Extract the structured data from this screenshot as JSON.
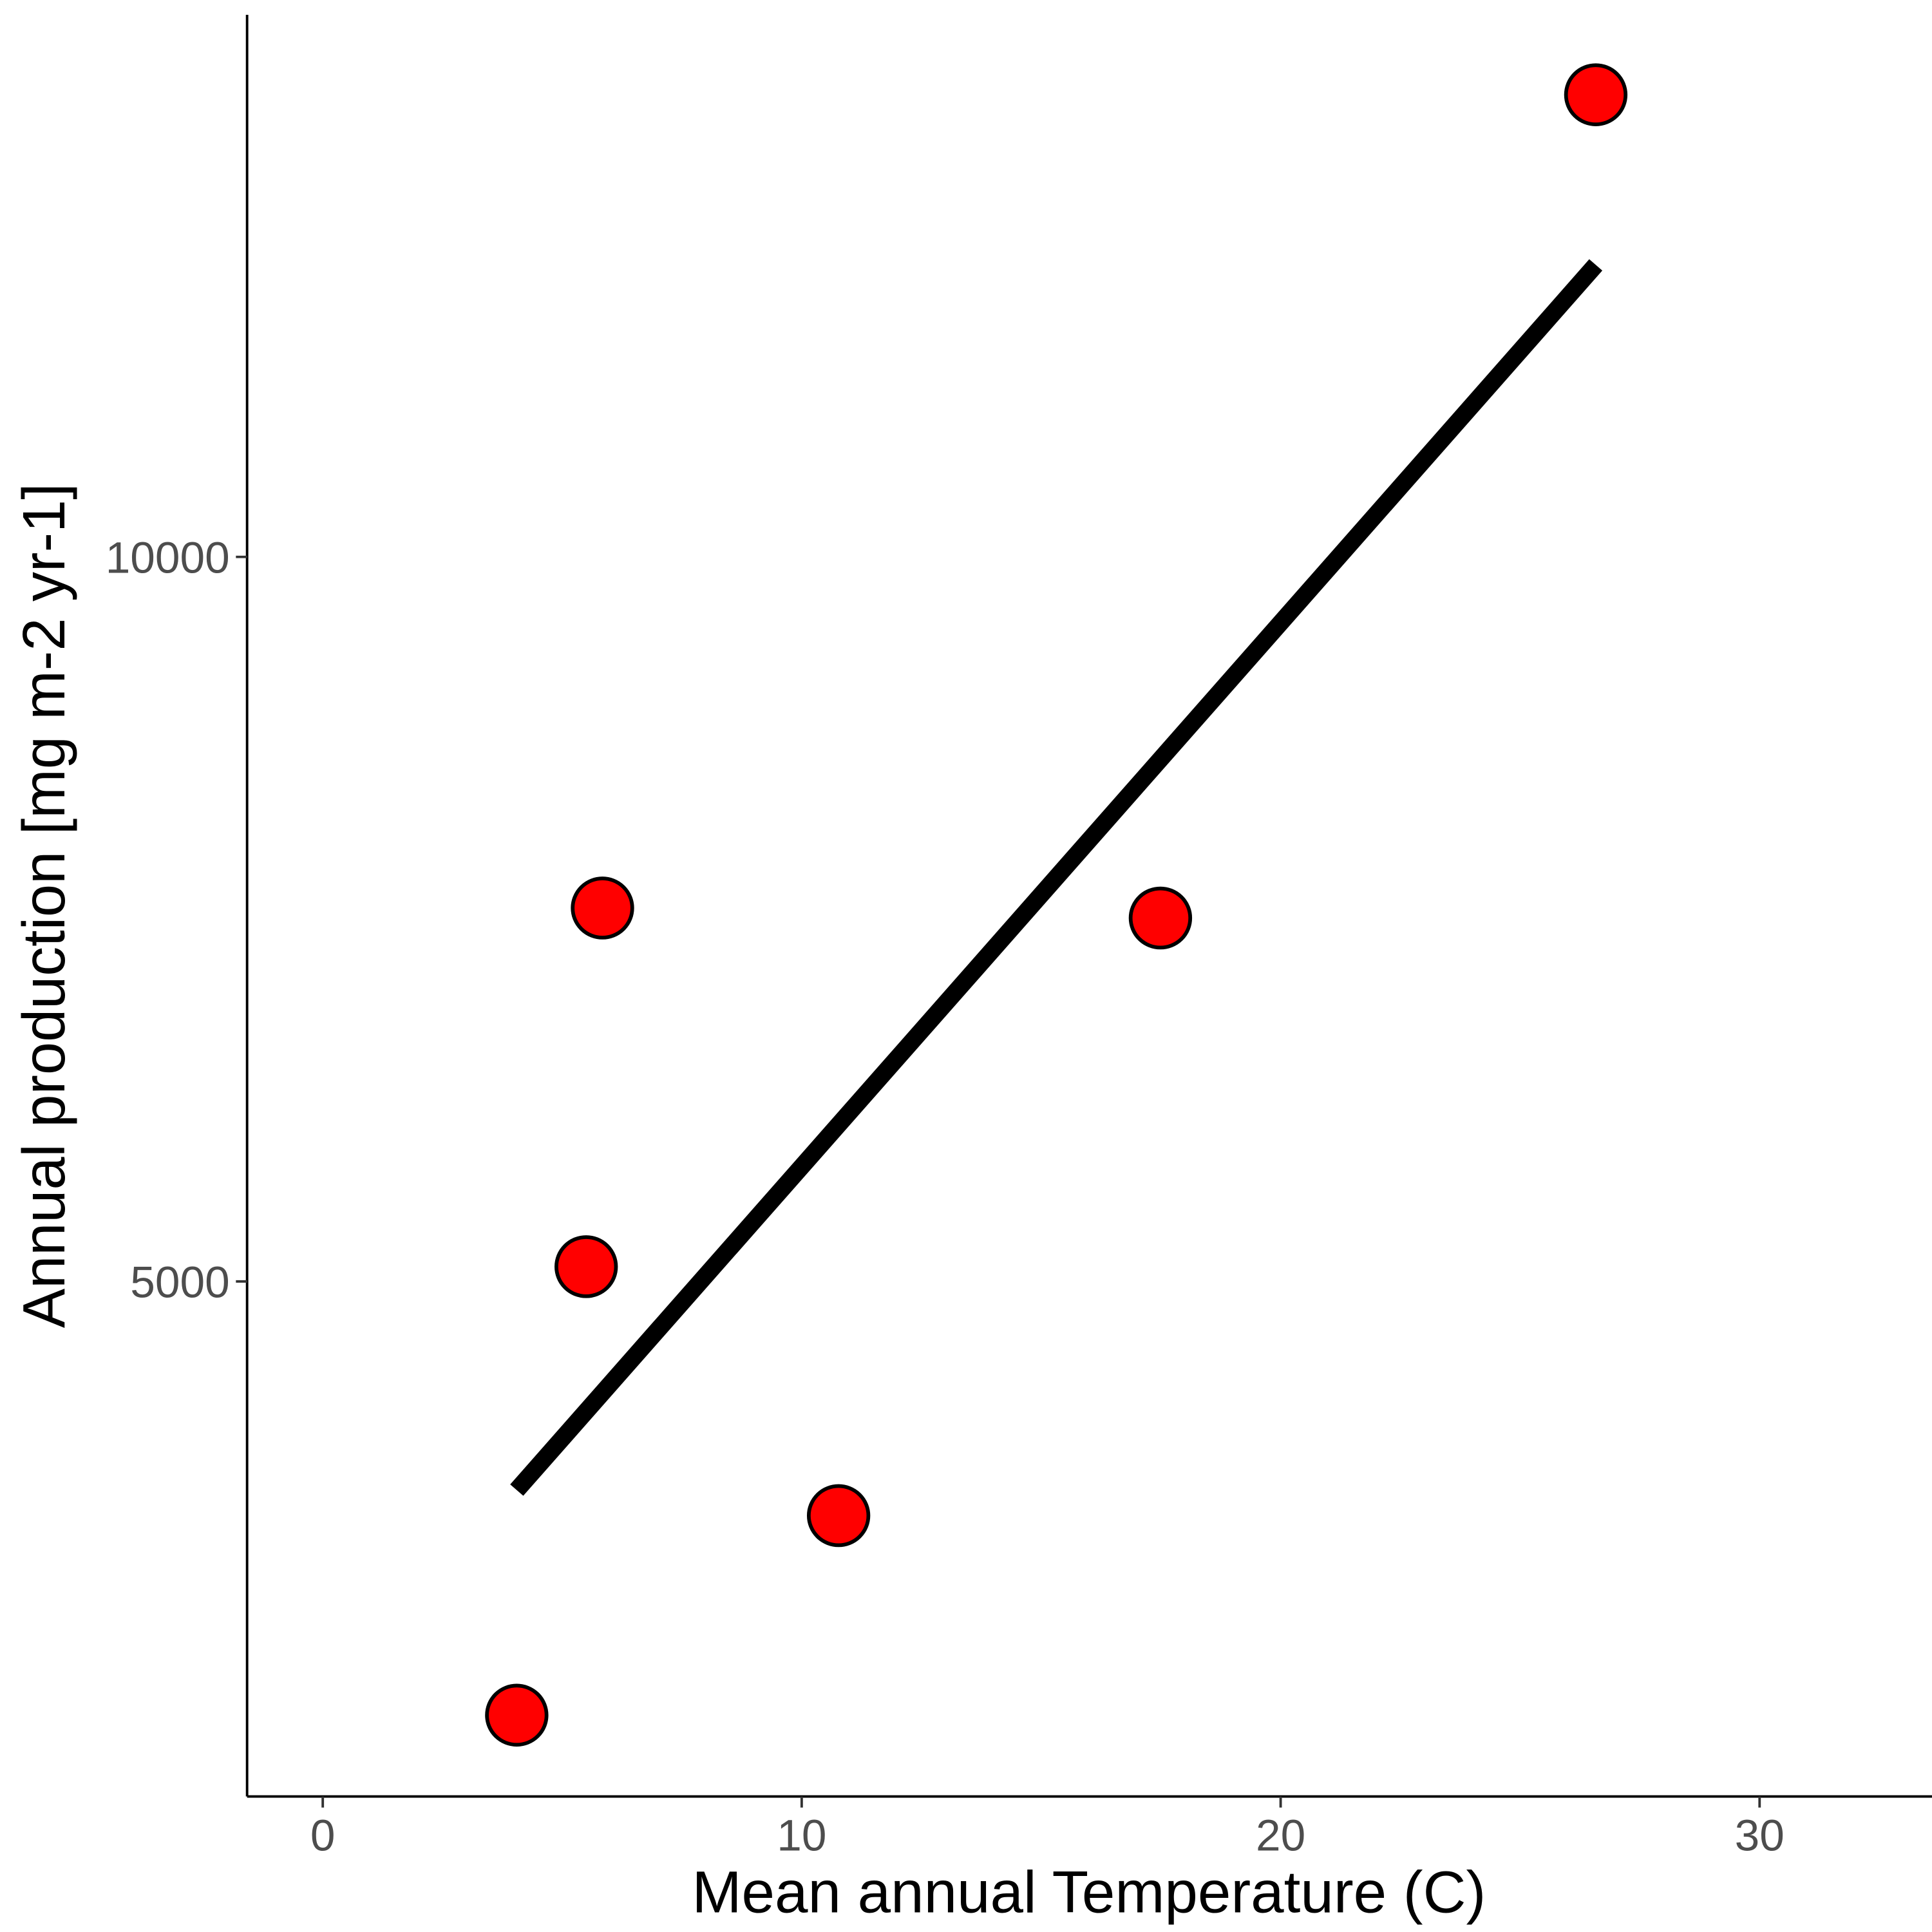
{
  "chart_data": {
    "type": "scatter",
    "x_label": "Mean annual Temperature (C)",
    "y_label": "Annual production [mg m-2 yr-1]",
    "x": [
      4.05,
      5.5,
      5.84,
      10.77,
      17.49,
      26.58
    ],
    "values": [
      2007,
      5102,
      7577,
      3384,
      7508,
      13189
    ],
    "color": "#ff0000",
    "edge_color": "#000000",
    "fit_line": {
      "x": [
        4.05,
        26.58
      ],
      "values": [
        3560,
        12015
      ],
      "color": "#000000"
    },
    "xlim": [
      -1.58,
      33.6
    ],
    "ylim": [
      1446,
      13741
    ],
    "xticks": [
      0,
      10,
      20,
      30
    ],
    "yticks": [
      5000,
      10000
    ],
    "grid": false
  }
}
